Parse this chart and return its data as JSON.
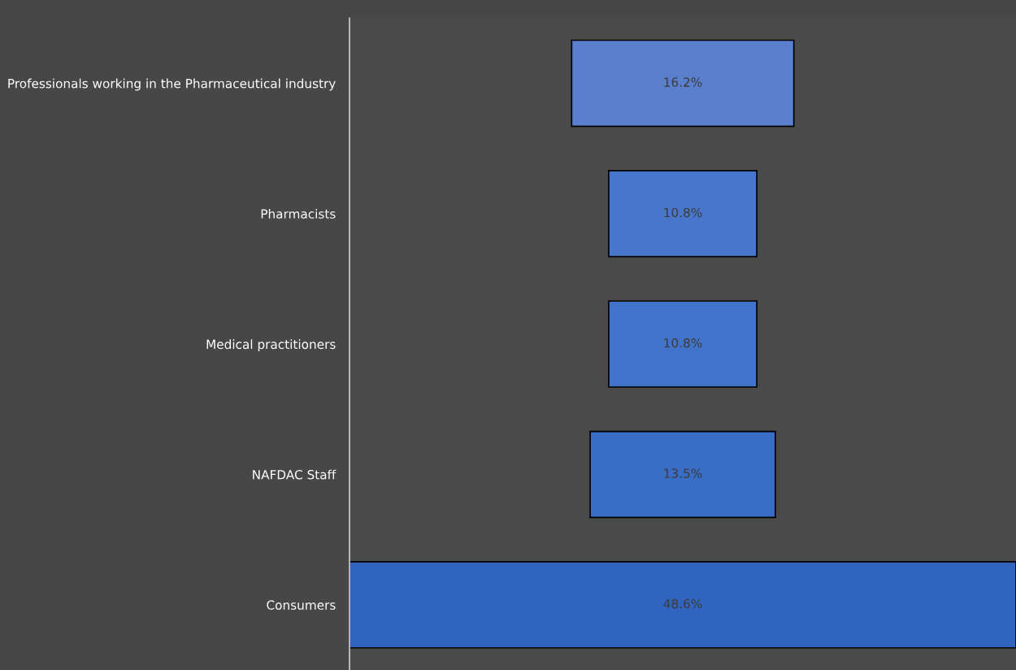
{
  "chart_data": {
    "type": "other",
    "categories": [
      "Professionals working in the Pharmaceutical industry",
      "Pharmacists",
      "Medical practitioners",
      "NAFDAC Staff",
      "Consumers"
    ],
    "values": [
      16.2,
      10.8,
      10.8,
      13.5,
      48.6
    ],
    "colors": [
      "#5a7fcd",
      "#4776cb",
      "#4173ca",
      "#3a6dc6",
      "#3064bf"
    ],
    "value_labels": [
      "16.2%",
      "10.8%",
      "10.8%",
      "13.5%",
      "48.6%"
    ]
  }
}
